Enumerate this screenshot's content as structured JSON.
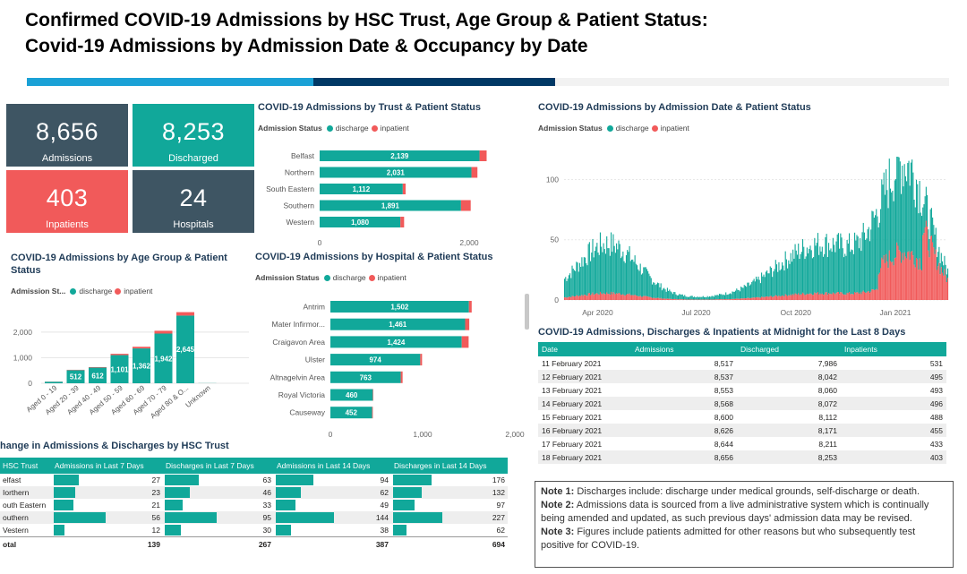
{
  "title_line1": "Confirmed COVID-19 Admissions by HSC Trust, Age Group & Patient Status:",
  "title_line2": "Covid-19 Admissions by Admission Date & Occupancy by Date",
  "colors": {
    "teal": "#11a89a",
    "red": "#f15a5a",
    "dark": "#3e5563"
  },
  "cards": [
    {
      "value": "8,656",
      "label": "Admissions"
    },
    {
      "value": "8,253",
      "label": "Discharged"
    },
    {
      "value": "403",
      "label": "Inpatients"
    },
    {
      "value": "24",
      "label": "Hospitals"
    }
  ],
  "legend": {
    "title": "Admission Status",
    "title_short": "Admission St...",
    "discharge": "discharge",
    "inpatient": "inpatient"
  },
  "chart_data": [
    {
      "type": "bar",
      "orientation": "horizontal",
      "title": "COVID-19 Admissions by Trust & Patient Status",
      "categories": [
        "Belfast",
        "Northern",
        "South Eastern",
        "Southern",
        "Western"
      ],
      "series": [
        {
          "name": "discharge",
          "values": [
            2139,
            2031,
            1112,
            1891,
            1080
          ],
          "labels": [
            "2,139",
            "2,031",
            "1,112",
            "1,891",
            "1,080"
          ]
        },
        {
          "name": "inpatient",
          "values": [
            95,
            80,
            38,
            130,
            50
          ]
        }
      ],
      "xlim": [
        0,
        2300
      ],
      "ticks": [
        0,
        2000
      ],
      "tick_labels": [
        "0",
        "2,000"
      ]
    },
    {
      "type": "bar",
      "orientation": "vertical",
      "title": "COVID-19 Admissions by Age Group & Patient Status",
      "categories": [
        "Aged 0 - 19",
        "Aged 20 - 39",
        "Aged 40 - 49",
        "Aged 50 - 59",
        "Aged 60 - 69",
        "Aged 70 - 79",
        "Aged 80 & O...",
        "Unknown"
      ],
      "series": [
        {
          "name": "discharge",
          "values": [
            60,
            512,
            612,
            1101,
            1362,
            1942,
            2645,
            5
          ],
          "labels": [
            "",
            "512",
            "612",
            "1,101",
            "1,362",
            "1,942",
            "2,645",
            ""
          ]
        },
        {
          "name": "inpatient",
          "values": [
            5,
            15,
            20,
            50,
            65,
            110,
            135,
            0
          ]
        }
      ],
      "ylim": [
        0,
        2800
      ],
      "ticks": [
        0,
        1000,
        2000
      ],
      "tick_labels": [
        "0",
        "1,000",
        "2,000"
      ]
    },
    {
      "type": "bar",
      "orientation": "horizontal",
      "title": "COVID-19 Admissions by Hospital & Patient Status",
      "categories": [
        "Antrim",
        "Mater Infirmor...",
        "Craigavon Area",
        "Ulster",
        "Altnagelvin Area",
        "Royal Victoria",
        "Causeway"
      ],
      "series": [
        {
          "name": "discharge",
          "values": [
            1502,
            1461,
            1424,
            974,
            763,
            460,
            452
          ],
          "labels": [
            "1,502",
            "1,461",
            "1,424",
            "974",
            "763",
            "460",
            "452"
          ]
        },
        {
          "name": "inpatient",
          "values": [
            30,
            45,
            75,
            20,
            20,
            5,
            8
          ]
        }
      ],
      "xlim": [
        0,
        2000
      ],
      "ticks": [
        0,
        1000,
        2000
      ],
      "tick_labels": [
        "0",
        "1,000",
        "2,000"
      ]
    },
    {
      "type": "bar",
      "title": "COVID-19 Admissions by Admission Date & Patient Status",
      "x_tick_labels": [
        "Apr 2020",
        "Jul 2020",
        "Oct 2020",
        "Jan 2021"
      ],
      "ylim": [
        0,
        110
      ],
      "ticks": [
        0,
        50,
        100
      ],
      "tick_labels": [
        "0",
        "50",
        "100"
      ],
      "peaks": [
        {
          "date": "2020-04-10",
          "value": 45
        },
        {
          "date": "2020-10-25",
          "value": 45
        },
        {
          "date": "2021-01-10",
          "value": 105
        }
      ]
    }
  ],
  "last8": {
    "title": "COVID-19 Admissions, Discharges & Inpatients at Midnight for the Last 8 Days",
    "headers": [
      "Date",
      "Admissions",
      "Discharged",
      "Inpatients"
    ],
    "rows": [
      [
        "11 February 2021",
        "8,517",
        "7,986",
        "531"
      ],
      [
        "12 February 2021",
        "8,537",
        "8,042",
        "495"
      ],
      [
        "13 February 2021",
        "8,553",
        "8,060",
        "493"
      ],
      [
        "14 February 2021",
        "8,568",
        "8,072",
        "496"
      ],
      [
        "15 February 2021",
        "8,600",
        "8,112",
        "488"
      ],
      [
        "16 February 2021",
        "8,626",
        "8,171",
        "455"
      ],
      [
        "17 February 2021",
        "8,644",
        "8,211",
        "433"
      ],
      [
        "18 February 2021",
        "8,656",
        "8,253",
        "403"
      ]
    ]
  },
  "change": {
    "title": "hange in Admissions & Discharges by HSC Trust",
    "headers": [
      "HSC Trust",
      "Admissions in Last 7 Days",
      "Discharges in Last 7 Days",
      "Admissions in Last 14 Days",
      "Discharges in Last 14 Days"
    ],
    "rows": [
      [
        "elfast",
        "27",
        "63",
        "94",
        "176"
      ],
      [
        "Iorthern",
        "23",
        "46",
        "62",
        "132"
      ],
      [
        "outh Eastern",
        "21",
        "33",
        "49",
        "97"
      ],
      [
        "outhern",
        "56",
        "95",
        "144",
        "227"
      ],
      [
        "Vestern",
        "12",
        "30",
        "38",
        "62"
      ]
    ],
    "total": [
      "otal",
      "139",
      "267",
      "387",
      "694"
    ]
  },
  "notes": [
    {
      "label": "Note 1:",
      "text": " Discharges include: discharge under medical grounds, self-discharge or death."
    },
    {
      "label": "Note 2:",
      "text": " Admissions data is sourced from a live administrative system which is continually being amended and updated, as such previous days' admission data may be revised."
    },
    {
      "label": "Note 3:",
      "text": " Figures include patients admitted for other reasons but who subsequently test positive for COVID-19."
    }
  ]
}
